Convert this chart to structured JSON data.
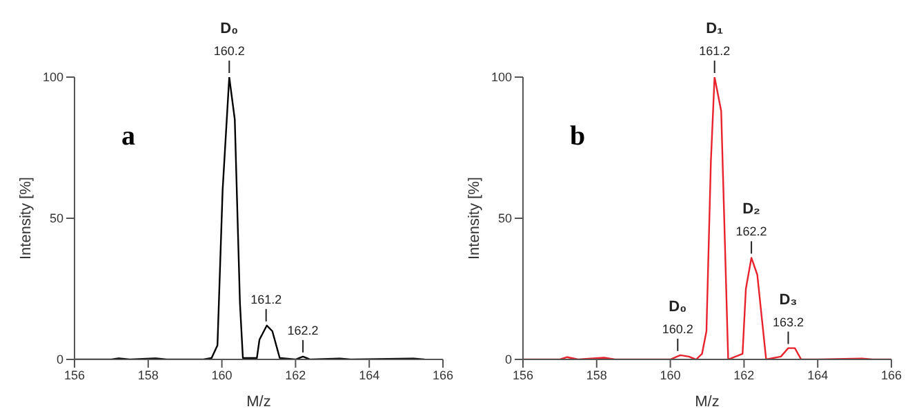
{
  "chart_data": [
    {
      "type": "line",
      "xlabel": "M/z",
      "ylabel": "Intensity [%]",
      "xlim": [
        156,
        166
      ],
      "xticks": [
        156,
        158,
        160,
        162,
        164,
        166
      ],
      "ylim": [
        0,
        100
      ],
      "yticks": [
        0,
        50,
        100
      ],
      "grid": false,
      "legend": false,
      "marker": "none",
      "line_style": "solid",
      "annotations": [
        "a",
        {
          "text": "160.2",
          "x": 160.2,
          "y": 100
        },
        {
          "text": "D₀",
          "x": 160.2,
          "y": 100
        },
        {
          "text": "161.2",
          "x": 161.2,
          "y": 12
        },
        {
          "text": "162.2",
          "x": 162.2,
          "y": 1
        }
      ],
      "series": [
        {
          "color": "#000000",
          "x": [
            156,
            157,
            157.2,
            157.5,
            158.2,
            158.5,
            159.5,
            159.72,
            159.88,
            160.02,
            160.2,
            160.35,
            160.49,
            160.57,
            160.95,
            161.02,
            161.22,
            161.37,
            161.57,
            162.0,
            162.2,
            162.4,
            163.2,
            163.5,
            165.2,
            165.5
          ],
          "values": [
            0,
            0,
            0.4,
            0,
            0.4,
            0,
            0,
            0.5,
            5,
            60,
            100,
            85,
            20,
            0.5,
            0.5,
            7,
            12,
            10,
            0.5,
            0,
            1,
            0,
            0.3,
            0,
            0.3,
            0
          ]
        }
      ]
    },
    {
      "type": "line",
      "xlabel": "M/z",
      "ylabel": "Intensity [%]",
      "xlim": [
        156,
        166
      ],
      "xticks": [
        156,
        158,
        160,
        162,
        164,
        166
      ],
      "ylim": [
        0,
        100
      ],
      "yticks": [
        0,
        50,
        100
      ],
      "grid": false,
      "legend": false,
      "marker": "none",
      "line_style": "solid",
      "annotations": [
        "b",
        {
          "text": "160.2",
          "x": 160.2,
          "y": 1.5
        },
        {
          "text": "D₀",
          "x": 160.2,
          "y": 1.5
        },
        {
          "text": "161.2",
          "x": 161.2,
          "y": 100
        },
        {
          "text": "D₁",
          "x": 161.2,
          "y": 100
        },
        {
          "text": "162.2",
          "x": 162.2,
          "y": 36
        },
        {
          "text": "D₂",
          "x": 162.2,
          "y": 36
        },
        {
          "text": "163.2",
          "x": 163.2,
          "y": 4
        },
        {
          "text": "D₃",
          "x": 163.2,
          "y": 4
        }
      ],
      "series": [
        {
          "color": "#e8212b",
          "x": [
            156,
            157,
            157.2,
            157.5,
            158.2,
            158.5,
            160,
            160.27,
            160.5,
            160.7,
            160.86,
            160.98,
            161.1,
            161.2,
            161.38,
            161.57,
            161.96,
            162.05,
            162.2,
            162.36,
            162.6,
            163.0,
            163.2,
            163.38,
            163.55,
            164,
            165.2,
            165.5,
            166
          ],
          "values": [
            0,
            0,
            0.8,
            0,
            0.6,
            0,
            0,
            1.5,
            1,
            0,
            2,
            10,
            70,
            100,
            88,
            0,
            2,
            25,
            36,
            30,
            0,
            1,
            4,
            4,
            0,
            0,
            0.3,
            0,
            0
          ]
        }
      ]
    }
  ]
}
